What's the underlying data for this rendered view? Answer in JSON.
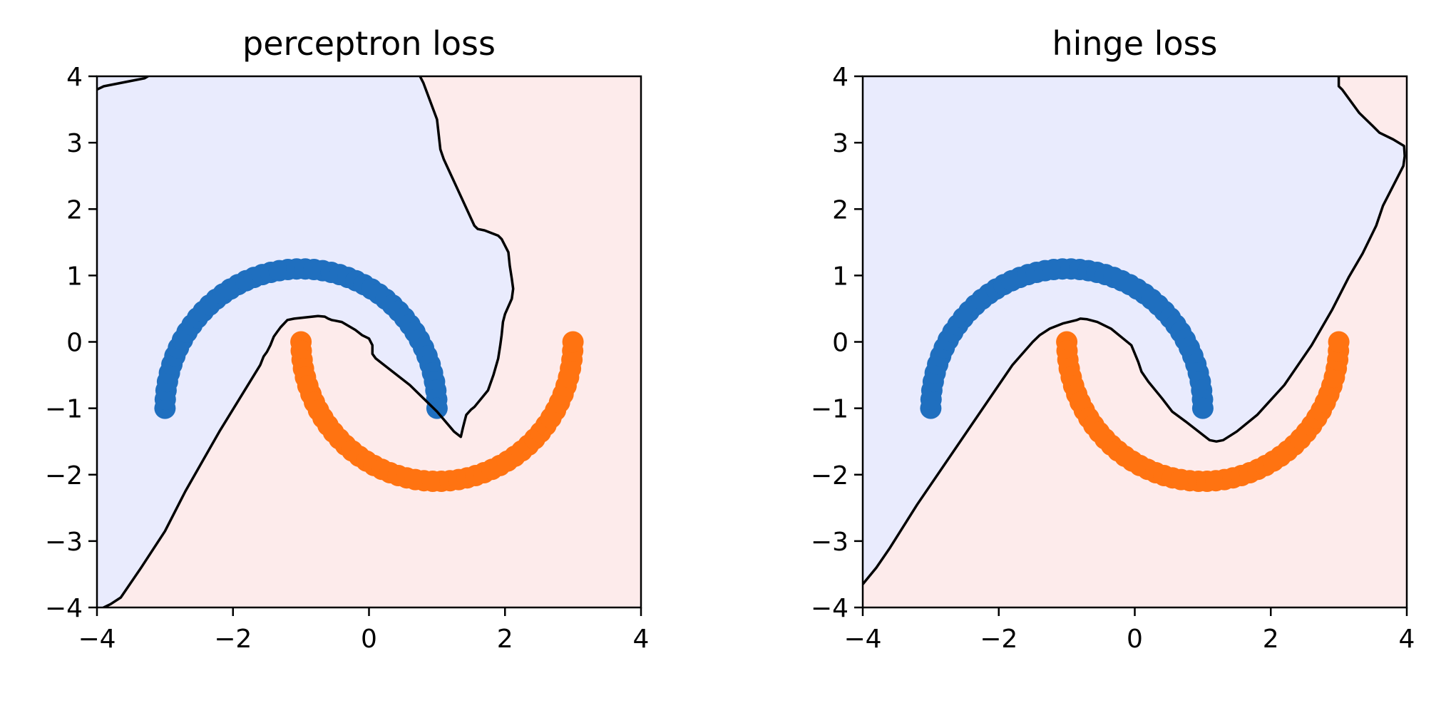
{
  "colors": {
    "class_a_region": "#e9ebfd",
    "class_b_region": "#fdebeb",
    "class_a_points": "#1f6fbf",
    "class_b_points": "#ff7311",
    "boundary": "#000000"
  },
  "chart_data": [
    {
      "type": "scatter",
      "title": "perceptron loss",
      "xlabel": "",
      "ylabel": "",
      "xlim": [
        -4,
        4
      ],
      "ylim": [
        -4,
        4
      ],
      "xticks": [
        -4,
        -2,
        0,
        2,
        4
      ],
      "yticks": [
        -4,
        -3,
        -2,
        -1,
        0,
        1,
        2,
        3,
        4
      ],
      "xtick_labels": [
        "−4",
        "−2",
        "0",
        "2",
        "4"
      ],
      "ytick_labels": [
        "−4",
        "−3",
        "−2",
        "−1",
        "0",
        "1",
        "2",
        "3",
        "4"
      ],
      "grid": false,
      "series": [
        {
          "class": "a",
          "shape": "upper-arc",
          "center": [
            -1,
            -1
          ],
          "radius": 2,
          "x_range": [
            -3,
            1
          ],
          "points": 50
        },
        {
          "class": "b",
          "shape": "lower-arc",
          "center": [
            1,
            0
          ],
          "radius": 2,
          "x_range": [
            -1,
            3
          ],
          "points": 50
        }
      ],
      "decision_boundary": [
        [
          [
            -4,
            3.8
          ],
          [
            -3.9,
            3.85
          ],
          [
            -3.5,
            3.93
          ],
          [
            -3.3,
            3.97
          ],
          [
            -3.25,
            4
          ]
        ],
        [
          [
            0.75,
            4
          ],
          [
            0.8,
            3.9
          ],
          [
            1.0,
            3.35
          ],
          [
            1.05,
            2.9
          ],
          [
            1.1,
            2.75
          ],
          [
            1.55,
            1.75
          ],
          [
            1.6,
            1.7
          ],
          [
            1.7,
            1.68
          ],
          [
            1.9,
            1.6
          ],
          [
            1.95,
            1.55
          ],
          [
            2.05,
            1.35
          ],
          [
            2.07,
            1.15
          ],
          [
            2.1,
            0.95
          ],
          [
            2.12,
            0.8
          ],
          [
            2.1,
            0.65
          ],
          [
            2.0,
            0.42
          ],
          [
            1.97,
            0.3
          ],
          [
            1.95,
            0.1
          ],
          [
            1.93,
            -0.05
          ],
          [
            1.9,
            -0.25
          ],
          [
            1.83,
            -0.5
          ],
          [
            1.75,
            -0.73
          ],
          [
            1.55,
            -0.98
          ],
          [
            1.5,
            -1.02
          ],
          [
            1.43,
            -1.1
          ],
          [
            1.4,
            -1.22
          ],
          [
            1.38,
            -1.3
          ],
          [
            1.35,
            -1.43
          ],
          [
            1.25,
            -1.35
          ],
          [
            1.0,
            -1.05
          ],
          [
            0.6,
            -0.65
          ],
          [
            0.1,
            -0.25
          ],
          [
            0.05,
            -0.18
          ],
          [
            0.05,
            -0.05
          ],
          [
            0.0,
            0.05
          ],
          [
            -0.1,
            0.1
          ],
          [
            -0.2,
            0.18
          ],
          [
            -0.4,
            0.3
          ],
          [
            -0.5,
            0.32
          ],
          [
            -0.55,
            0.33
          ],
          [
            -0.6,
            0.35
          ],
          [
            -0.65,
            0.38
          ],
          [
            -0.75,
            0.39
          ],
          [
            -1.1,
            0.35
          ],
          [
            -1.2,
            0.33
          ],
          [
            -1.3,
            0.22
          ],
          [
            -1.35,
            0.15
          ],
          [
            -1.4,
            0.08
          ],
          [
            -1.45,
            -0.05
          ],
          [
            -1.5,
            -0.15
          ],
          [
            -1.55,
            -0.22
          ],
          [
            -1.6,
            -0.35
          ],
          [
            -2.2,
            -1.35
          ],
          [
            -2.7,
            -2.25
          ],
          [
            -3.0,
            -2.85
          ],
          [
            -3.35,
            -3.4
          ],
          [
            -3.65,
            -3.85
          ],
          [
            -3.8,
            -3.95
          ],
          [
            -3.9,
            -4.0
          ]
        ]
      ]
    },
    {
      "type": "scatter",
      "title": "hinge loss",
      "xlabel": "",
      "ylabel": "",
      "xlim": [
        -4,
        4
      ],
      "ylim": [
        -4,
        4
      ],
      "xticks": [
        -4,
        -2,
        0,
        2,
        4
      ],
      "yticks": [
        -4,
        -3,
        -2,
        -1,
        0,
        1,
        2,
        3,
        4
      ],
      "xtick_labels": [
        "−4",
        "−2",
        "0",
        "2",
        "4"
      ],
      "ytick_labels": [
        "−4",
        "−3",
        "−2",
        "−1",
        "0",
        "1",
        "2",
        "3",
        "4"
      ],
      "grid": false,
      "series": [
        {
          "class": "a",
          "shape": "upper-arc",
          "center": [
            -1,
            -1
          ],
          "radius": 2,
          "x_range": [
            -3,
            1
          ],
          "points": 50
        },
        {
          "class": "b",
          "shape": "lower-arc",
          "center": [
            1,
            0
          ],
          "radius": 2,
          "x_range": [
            -1,
            3
          ],
          "points": 50
        }
      ],
      "decision_boundary": [
        [
          [
            -4,
            -3.65
          ],
          [
            -3.8,
            -3.4
          ],
          [
            -3.6,
            -3.1
          ],
          [
            -3.2,
            -2.45
          ],
          [
            -2.4,
            -1.25
          ],
          [
            -1.8,
            -0.35
          ],
          [
            -1.5,
            0.0
          ],
          [
            -1.4,
            0.1
          ],
          [
            -1.25,
            0.2
          ],
          [
            -1.05,
            0.28
          ],
          [
            -0.85,
            0.33
          ],
          [
            -0.8,
            0.35
          ],
          [
            -0.7,
            0.34
          ],
          [
            -0.55,
            0.3
          ],
          [
            -0.35,
            0.2
          ],
          [
            -0.05,
            -0.05
          ],
          [
            0.05,
            -0.3
          ],
          [
            0.1,
            -0.45
          ],
          [
            0.2,
            -0.6
          ],
          [
            0.4,
            -0.85
          ],
          [
            0.55,
            -1.05
          ],
          [
            0.75,
            -1.2
          ],
          [
            1.0,
            -1.4
          ],
          [
            1.1,
            -1.48
          ],
          [
            1.2,
            -1.5
          ],
          [
            1.3,
            -1.48
          ],
          [
            1.5,
            -1.35
          ],
          [
            1.8,
            -1.1
          ],
          [
            2.2,
            -0.65
          ],
          [
            2.6,
            -0.05
          ],
          [
            2.9,
            0.48
          ],
          [
            3.15,
            0.98
          ],
          [
            3.35,
            1.33
          ],
          [
            3.55,
            1.75
          ],
          [
            3.65,
            2.05
          ],
          [
            3.95,
            2.65
          ],
          [
            3.97,
            2.8
          ],
          [
            3.96,
            2.95
          ],
          [
            3.8,
            3.05
          ],
          [
            3.6,
            3.15
          ],
          [
            3.5,
            3.25
          ],
          [
            3.3,
            3.45
          ],
          [
            3.05,
            3.8
          ],
          [
            3.0,
            3.85
          ],
          [
            3.0,
            4.0
          ]
        ]
      ]
    }
  ]
}
